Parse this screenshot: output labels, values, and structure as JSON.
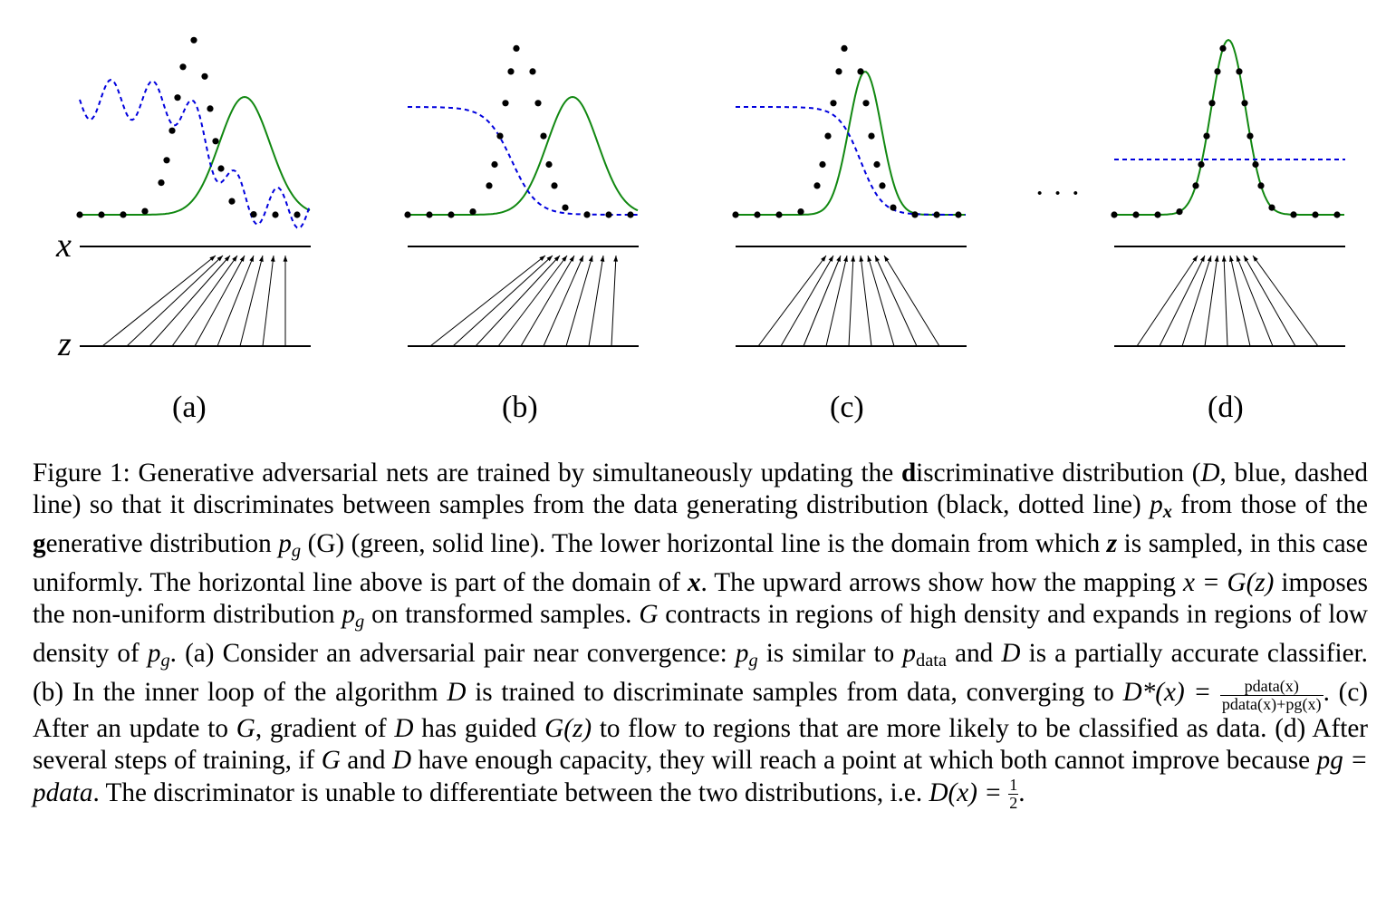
{
  "figure": {
    "axis_labels": {
      "x": "x",
      "z": "z"
    },
    "ellipsis": "· · ·",
    "panels": [
      {
        "label": "(a)"
      },
      {
        "label": "(b)"
      },
      {
        "label": "(c)"
      },
      {
        "label": "(d)"
      }
    ],
    "colors": {
      "data_dots": "#000000",
      "generator": "#118811",
      "discriminator": "#0000dd",
      "axes": "#000000"
    }
  },
  "caption": {
    "figure_label": "Figure 1:",
    "s1": " Generative adversarial nets are trained by simultaneously updating the ",
    "s1_bold": "d",
    "s2": "iscriminative distribution (",
    "D": "D",
    "s3": ", blue, dashed line) so that it discriminates between samples from the data generating distribution (black, dotted line) ",
    "px": "p",
    "px_sub": "x",
    "s4": " from those of the ",
    "s4_bold": "g",
    "s5": "enerative distribution ",
    "pg": "p",
    "pg_sub": "g",
    "s6": " (G) (green, solid line). The lower horizontal line is the domain from which ",
    "z1": "z",
    "s7": " is sampled, in this case uniformly. The horizontal line above is part of the domain of ",
    "x1": "x",
    "s8": ". The upward arrows show how the mapping ",
    "mapping": "x = G(z)",
    "s9": " imposes the non-uniform distribution ",
    "s10": " on transformed samples. ",
    "G1": "G",
    "s11": " contracts in regions of high density and expands in regions of low density of ",
    "s12": ". (a) Consider an adversarial pair near convergence: ",
    "s13": " is similar to ",
    "pdata": "p",
    "pdata_sub": "data",
    "s14": " and ",
    "s15": " is a partially accurate classifier. (b) In the inner loop of the algorithm ",
    "s16": " is trained to discriminate samples from data, converging to ",
    "dstar": "D*(x) =",
    "frac_num": "pdata(x)",
    "frac_den": "pdata(x)+pg(x)",
    "s17": ". (c) After an update to ",
    "s18": ", gradient of ",
    "s19": " has guided ",
    "Gz": "G(z)",
    "s20": " to flow to regions that are more likely to be classified as data. (d) After several steps of training, if ",
    "s21": " and ",
    "s22": " have enough capacity, they will reach a point at which both cannot improve because ",
    "eq": "pg = pdata",
    "s23": ". The discriminator is unable to differentiate between the two distributions, i.e. ",
    "dx": "D(x) =",
    "half_num": "1",
    "half_den": "2",
    "s24": "."
  }
}
